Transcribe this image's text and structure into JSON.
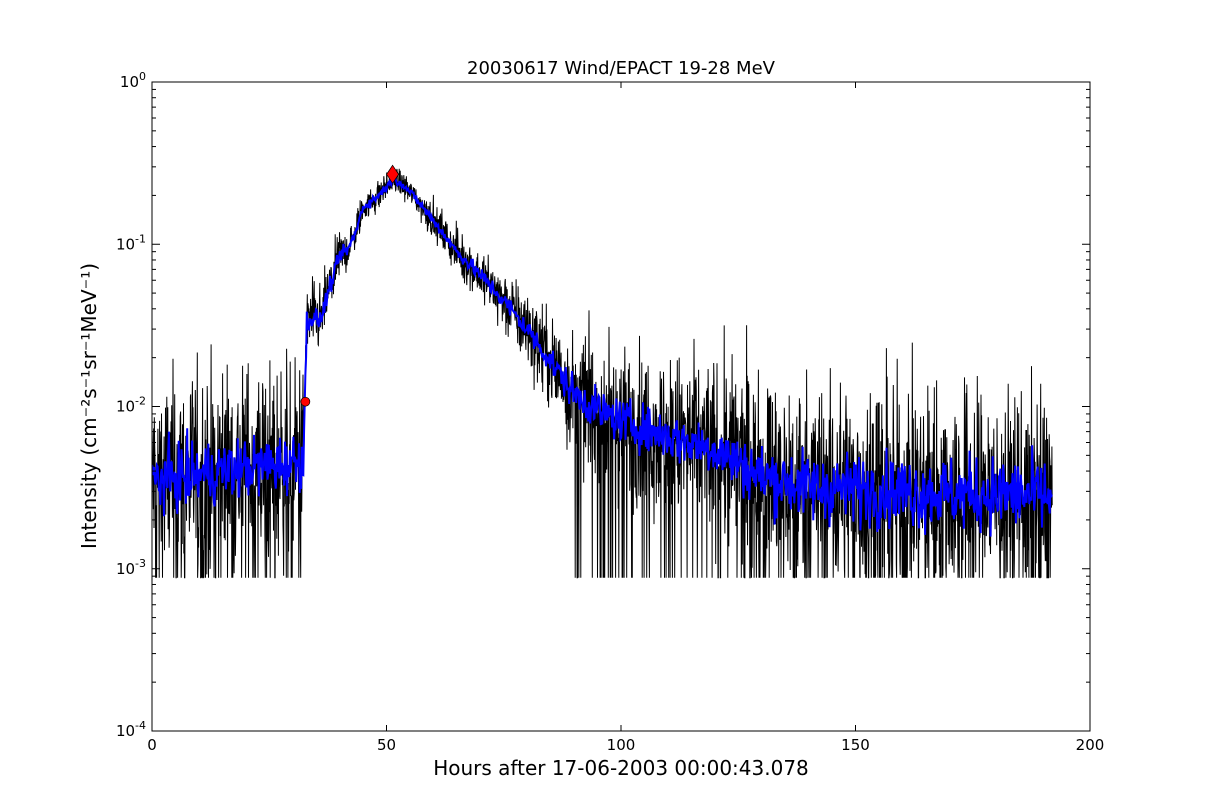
{
  "chart_data": {
    "type": "line",
    "title": "20030617 Wind/EPACT 19-28 MeV",
    "xlabel": "Hours after 17-06-2003 00:00:43.078",
    "ylabel": "Intensity (cm⁻²s⁻¹sr⁻¹MeV⁻¹)",
    "yscale": "log",
    "xlim": [
      0,
      200
    ],
    "ylim": [
      0.0001,
      1
    ],
    "x_ticks": [
      0,
      50,
      100,
      150,
      200
    ],
    "y_ticks": [
      {
        "value": 0.0001,
        "base": "10",
        "exp": "-4"
      },
      {
        "value": 0.001,
        "base": "10",
        "exp": "-3"
      },
      {
        "value": 0.01,
        "base": "10",
        "exp": "-2"
      },
      {
        "value": 0.1,
        "base": "10",
        "exp": "-1"
      },
      {
        "value": 1,
        "base": "10",
        "exp": "0"
      }
    ],
    "grid": false,
    "colors": {
      "raw": "#000000",
      "smoothed": "#0000ff",
      "markers": "#ff0000"
    },
    "profile": {
      "x": [
        0,
        10,
        20,
        30,
        32.3,
        32.6,
        33,
        34,
        36,
        37,
        38,
        40,
        42,
        43.5,
        45,
        47,
        49,
        51.3,
        53,
        55,
        57,
        60,
        65,
        70,
        75,
        80,
        85,
        90,
        95,
        100,
        110,
        120,
        125,
        130,
        140,
        150,
        160,
        170,
        180,
        192
      ],
      "y": [
        0.0035,
        0.0038,
        0.0042,
        0.0045,
        0.0048,
        0.0105,
        0.034,
        0.035,
        0.034,
        0.045,
        0.055,
        0.085,
        0.095,
        0.12,
        0.17,
        0.185,
        0.21,
        0.25,
        0.24,
        0.21,
        0.18,
        0.14,
        0.09,
        0.065,
        0.045,
        0.03,
        0.019,
        0.012,
        0.0095,
        0.0082,
        0.0065,
        0.0055,
        0.0045,
        0.0037,
        0.0032,
        0.0031,
        0.003,
        0.0029,
        0.0029,
        0.0028
      ]
    },
    "markers": [
      {
        "label": "onset",
        "shape": "circle",
        "x": 32.7,
        "y": 0.0107
      },
      {
        "label": "peak",
        "shape": "diamond",
        "x": 51.3,
        "y": 0.27
      }
    ]
  }
}
